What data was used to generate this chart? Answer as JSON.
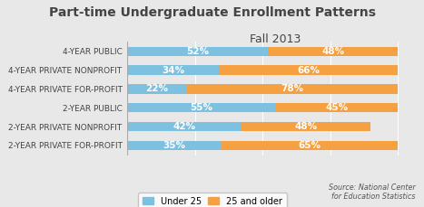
{
  "title_line1": "Part-time Undergraduate Enrollment Patterns",
  "title_line2": "Fall 2013",
  "categories": [
    "4-YEAR PUBLIC",
    "4-YEAR PRIVATE NONPROFIT",
    "4-YEAR PRIVATE FOR-PROFIT",
    "2-YEAR PUBLIC",
    "2-YEAR PRIVATE NONPROFIT",
    "2-YEAR PRIVATE FOR-PROFIT"
  ],
  "under25": [
    52,
    34,
    22,
    55,
    42,
    35
  ],
  "over25": [
    48,
    66,
    78,
    45,
    48,
    65
  ],
  "color_under25": "#7dc0e0",
  "color_over25": "#f5a041",
  "xlim": [
    0,
    105
  ],
  "legend_labels": [
    "Under 25",
    "25 and older"
  ],
  "source_text": "Source: National Center\nfor Education Statistics",
  "bar_height": 0.5,
  "bg_color": "#e8e8e8",
  "title_fontsize": 10,
  "subtitle_fontsize": 9,
  "category_fontsize": 6.5,
  "bar_label_fontsize": 7.5
}
